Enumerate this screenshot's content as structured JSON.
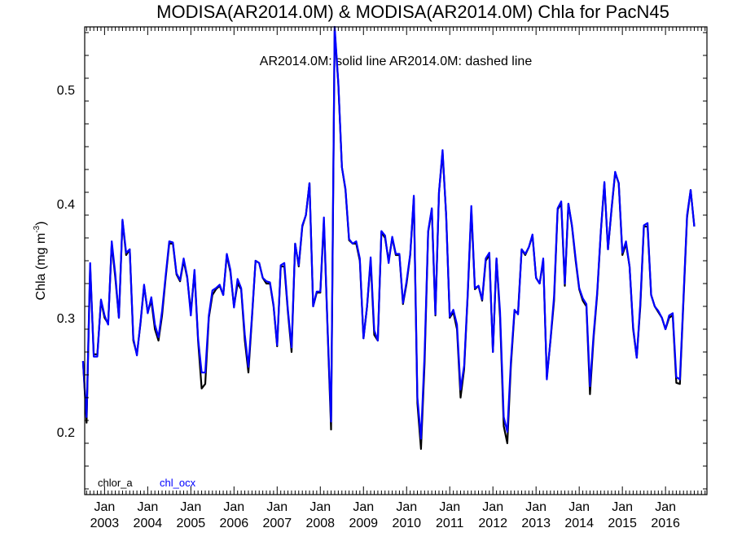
{
  "chart_data": {
    "type": "line",
    "title": "MODISA(AR2014.0M) & MODISA(AR2014.0M)  Chla for PacN45",
    "subtitle": "AR2014.0M: solid line   AR2014.0M: dashed line",
    "ylabel": "Chla (mg m",
    "ylabel_sup": "-3",
    "ylabel_close": ")",
    "ylim": [
      0.145,
      0.555
    ],
    "yticks": [
      {
        "value": 0.2,
        "label": "0.2"
      },
      {
        "value": 0.3,
        "label": "0.3"
      },
      {
        "value": 0.4,
        "label": "0.4"
      },
      {
        "value": 0.5,
        "label": "0.5"
      }
    ],
    "x_start": "2002-07",
    "x_range_years": [
      2002.54,
      2016.96
    ],
    "xticks": [
      {
        "year": 2003,
        "month_label": "Jan",
        "year_label": "2003"
      },
      {
        "year": 2004,
        "month_label": "Jan",
        "year_label": "2004"
      },
      {
        "year": 2005,
        "month_label": "Jan",
        "year_label": "2005"
      },
      {
        "year": 2006,
        "month_label": "Jan",
        "year_label": "2006"
      },
      {
        "year": 2007,
        "month_label": "Jan",
        "year_label": "2007"
      },
      {
        "year": 2008,
        "month_label": "Jan",
        "year_label": "2008"
      },
      {
        "year": 2009,
        "month_label": "Jan",
        "year_label": "2009"
      },
      {
        "year": 2010,
        "month_label": "Jan",
        "year_label": "2010"
      },
      {
        "year": 2011,
        "month_label": "Jan",
        "year_label": "2011"
      },
      {
        "year": 2012,
        "month_label": "Jan",
        "year_label": "2012"
      },
      {
        "year": 2013,
        "month_label": "Jan",
        "year_label": "2013"
      },
      {
        "year": 2014,
        "month_label": "Jan",
        "year_label": "2014"
      },
      {
        "year": 2015,
        "month_label": "Jan",
        "year_label": "2015"
      },
      {
        "year": 2016,
        "month_label": "Jan",
        "year_label": "2016"
      }
    ],
    "grid": false,
    "legend_placement": "bottom-left",
    "series": [
      {
        "name": "chlor_a",
        "color": "#000000",
        "values": [
          0.262,
          0.208,
          0.345,
          0.268,
          0.268,
          0.315,
          0.3,
          0.295,
          0.365,
          0.335,
          0.3,
          0.385,
          0.355,
          0.36,
          0.28,
          0.268,
          0.295,
          0.328,
          0.305,
          0.315,
          0.29,
          0.28,
          0.302,
          0.335,
          0.365,
          0.365,
          0.338,
          0.332,
          0.35,
          0.335,
          0.305,
          0.34,
          0.28,
          0.238,
          0.242,
          0.3,
          0.32,
          0.325,
          0.328,
          0.32,
          0.355,
          0.34,
          0.31,
          0.33,
          0.325,
          0.28,
          0.252,
          0.3,
          0.35,
          0.348,
          0.335,
          0.33,
          0.33,
          0.31,
          0.275,
          0.345,
          0.345,
          0.305,
          0.27,
          0.365,
          0.345,
          0.38,
          0.39,
          0.418,
          0.31,
          0.322,
          0.322,
          0.385,
          0.292,
          0.202,
          0.552,
          0.505,
          0.432,
          0.412,
          0.368,
          0.365,
          0.365,
          0.35,
          0.282,
          0.31,
          0.35,
          0.285,
          0.28,
          0.375,
          0.37,
          0.35,
          0.37,
          0.355,
          0.355,
          0.312,
          0.33,
          0.355,
          0.405,
          0.225,
          0.185,
          0.26,
          0.375,
          0.395,
          0.302,
          0.41,
          0.445,
          0.39,
          0.3,
          0.305,
          0.29,
          0.23,
          0.255,
          0.32,
          0.395,
          0.325,
          0.328,
          0.315,
          0.35,
          0.355,
          0.27,
          0.352,
          0.3,
          0.205,
          0.19,
          0.258,
          0.305,
          0.305,
          0.36,
          0.355,
          0.362,
          0.372,
          0.335,
          0.33,
          0.35,
          0.248,
          0.28,
          0.315,
          0.395,
          0.4,
          0.328,
          0.4,
          0.38,
          0.35,
          0.325,
          0.315,
          0.31,
          0.233,
          0.282,
          0.32,
          0.375,
          0.418,
          0.36,
          0.395,
          0.427,
          0.418,
          0.355,
          0.365,
          0.345,
          0.29,
          0.265,
          0.31,
          0.38,
          0.38,
          0.32,
          0.31,
          0.305,
          0.3,
          0.29,
          0.3,
          0.302,
          0.243,
          0.242,
          0.315,
          0.388,
          0.412,
          0.38
        ]
      },
      {
        "name": "chl_ocx",
        "color": "#0000ff",
        "values": [
          0.262,
          0.213,
          0.348,
          0.266,
          0.266,
          0.316,
          0.302,
          0.294,
          0.367,
          0.338,
          0.3,
          0.386,
          0.357,
          0.36,
          0.282,
          0.267,
          0.296,
          0.329,
          0.304,
          0.318,
          0.294,
          0.283,
          0.306,
          0.337,
          0.367,
          0.366,
          0.339,
          0.333,
          0.352,
          0.336,
          0.302,
          0.342,
          0.282,
          0.252,
          0.252,
          0.302,
          0.324,
          0.326,
          0.329,
          0.32,
          0.356,
          0.342,
          0.309,
          0.334,
          0.326,
          0.285,
          0.257,
          0.302,
          0.35,
          0.348,
          0.335,
          0.332,
          0.331,
          0.311,
          0.276,
          0.346,
          0.348,
          0.307,
          0.274,
          0.365,
          0.346,
          0.381,
          0.39,
          0.418,
          0.31,
          0.323,
          0.323,
          0.388,
          0.294,
          0.209,
          0.555,
          0.506,
          0.432,
          0.413,
          0.369,
          0.365,
          0.367,
          0.352,
          0.282,
          0.31,
          0.353,
          0.289,
          0.28,
          0.376,
          0.372,
          0.348,
          0.371,
          0.356,
          0.356,
          0.313,
          0.332,
          0.356,
          0.407,
          0.23,
          0.194,
          0.268,
          0.376,
          0.396,
          0.303,
          0.41,
          0.447,
          0.39,
          0.301,
          0.307,
          0.294,
          0.237,
          0.258,
          0.322,
          0.398,
          0.326,
          0.328,
          0.316,
          0.352,
          0.357,
          0.27,
          0.352,
          0.305,
          0.213,
          0.2,
          0.262,
          0.307,
          0.303,
          0.36,
          0.356,
          0.362,
          0.373,
          0.335,
          0.33,
          0.352,
          0.246,
          0.281,
          0.319,
          0.396,
          0.402,
          0.33,
          0.4,
          0.381,
          0.352,
          0.326,
          0.317,
          0.312,
          0.24,
          0.285,
          0.322,
          0.376,
          0.419,
          0.36,
          0.396,
          0.428,
          0.418,
          0.357,
          0.367,
          0.345,
          0.292,
          0.265,
          0.313,
          0.381,
          0.383,
          0.32,
          0.31,
          0.306,
          0.3,
          0.29,
          0.302,
          0.304,
          0.248,
          0.246,
          0.318,
          0.39,
          0.412,
          0.38
        ]
      }
    ]
  }
}
